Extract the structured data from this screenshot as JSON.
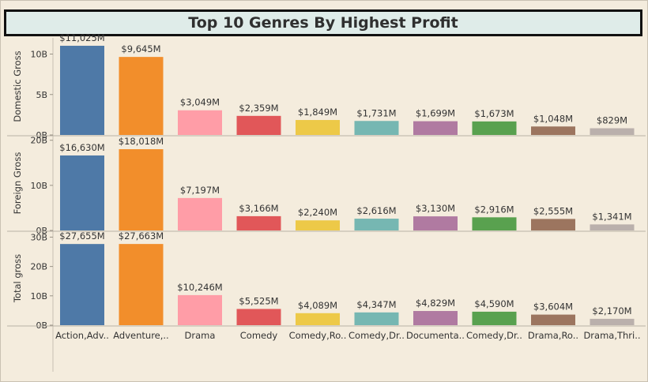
{
  "title": "Top 10 Genres By Highest Profit",
  "colors": [
    "#4e79a7",
    "#f28e2b",
    "#ff9da7",
    "#e15759",
    "#edc948",
    "#76b7b2",
    "#b07aa1",
    "#59a14f",
    "#9c755f",
    "#bab0ac"
  ],
  "chart_data": {
    "type": "bar",
    "categories": [
      "Action,Adv..",
      "Adventure,..",
      "Drama",
      "Comedy",
      "Comedy,Ro..",
      "Comedy,Dr..",
      "Documenta..",
      "Comedy,Dr..",
      "Drama,Ro..",
      "Drama,Thri.."
    ],
    "panels": [
      {
        "ylabel": "Domestic Gross",
        "ylim": [
          0,
          12000
        ],
        "ticks": [
          {
            "value": 0,
            "label": "0B"
          },
          {
            "value": 5000,
            "label": "5B"
          },
          {
            "value": 10000,
            "label": "10B"
          }
        ],
        "values": [
          11025,
          9645,
          3049,
          2359,
          1849,
          1731,
          1699,
          1673,
          1048,
          829
        ],
        "labels": [
          "$11,025M",
          "$9,645M",
          "$3,049M",
          "$2,359M",
          "$1,849M",
          "$1,731M",
          "$1,699M",
          "$1,673M",
          "$1,048M",
          "$829M"
        ]
      },
      {
        "ylabel": "Foreign Gross",
        "ylim": [
          0,
          21000
        ],
        "ticks": [
          {
            "value": 0,
            "label": "0B"
          },
          {
            "value": 10000,
            "label": "10B"
          },
          {
            "value": 20000,
            "label": "20B"
          }
        ],
        "values": [
          16630,
          18018,
          7197,
          3166,
          2240,
          2616,
          3130,
          2916,
          2555,
          1341
        ],
        "labels": [
          "$16,630M",
          "$18,018M",
          "$7,197M",
          "$3,166M",
          "$2,240M",
          "$2,616M",
          "$3,130M",
          "$2,916M",
          "$2,555M",
          "$1,341M"
        ]
      },
      {
        "ylabel": "Total gross",
        "ylim": [
          0,
          32000
        ],
        "ticks": [
          {
            "value": 0,
            "label": "0B"
          },
          {
            "value": 10000,
            "label": "10B"
          },
          {
            "value": 20000,
            "label": "20B"
          },
          {
            "value": 30000,
            "label": "30B"
          }
        ],
        "values": [
          27655,
          27663,
          10246,
          5525,
          4089,
          4347,
          4829,
          4590,
          3604,
          2170
        ],
        "labels": [
          "$27,655M",
          "$27,663M",
          "$10,246M",
          "$5,525M",
          "$4,089M",
          "$4,347M",
          "$4,829M",
          "$4,590M",
          "$3,604M",
          "$2,170M"
        ]
      }
    ],
    "grid": false,
    "legend": "none"
  }
}
